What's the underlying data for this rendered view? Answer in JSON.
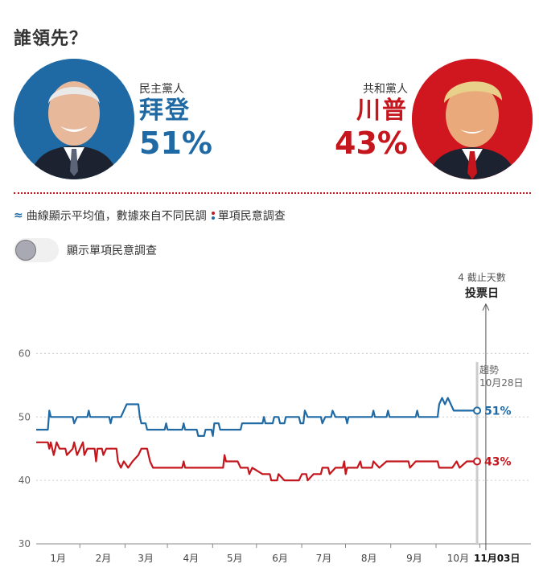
{
  "header": {
    "title": "誰領先？"
  },
  "candidates": {
    "dem": {
      "party": "民主黨人",
      "name": "拜登",
      "pct": "51%"
    },
    "rep": {
      "party": "共和黨人",
      "name": "川普",
      "pct": "43%"
    }
  },
  "legend": {
    "avg_text": "曲線顯示平均值，數據來自不同民調",
    "poll_text": "單項民意調查"
  },
  "toggle": {
    "label": "顯示單項民意調查"
  },
  "annotations": {
    "countdown": "4 截止天數",
    "election_day": "投票日",
    "trend_label": "趨勢",
    "trend_date": "10月28日",
    "election_date_label": "11月03日"
  },
  "colors": {
    "dem": "#1f6aa5",
    "rep": "#c4161c",
    "grid": "#cccccc"
  },
  "chart_data": {
    "type": "line",
    "title": "",
    "xlabel": "",
    "ylabel": "",
    "ylim": [
      30,
      65
    ],
    "y_ticks": [
      30,
      40,
      50,
      60
    ],
    "grid": true,
    "x_ticks": [
      {
        "label": "1月",
        "day": 15
      },
      {
        "label": "2月",
        "day": 46
      },
      {
        "label": "3月",
        "day": 75
      },
      {
        "label": "4月",
        "day": 106
      },
      {
        "label": "5月",
        "day": 136
      },
      {
        "label": "6月",
        "day": 167
      },
      {
        "label": "7月",
        "day": 197
      },
      {
        "label": "8月",
        "day": 228
      },
      {
        "label": "9月",
        "day": 259
      },
      {
        "label": "10月",
        "day": 289
      }
    ],
    "x_domain_days": [
      0,
      313
    ],
    "election_day": 308,
    "trend_day": 302,
    "series": [
      {
        "name": "拜登",
        "key": "dem",
        "points": [
          [
            0,
            48
          ],
          [
            8,
            48
          ],
          [
            9,
            51
          ],
          [
            10,
            50
          ],
          [
            25,
            50
          ],
          [
            26,
            49
          ],
          [
            28,
            50
          ],
          [
            35,
            50
          ],
          [
            36,
            51
          ],
          [
            37,
            50
          ],
          [
            50,
            50
          ],
          [
            51,
            49
          ],
          [
            52,
            50
          ],
          [
            58,
            50
          ],
          [
            60,
            51
          ],
          [
            62,
            52
          ],
          [
            70,
            52
          ],
          [
            71,
            50
          ],
          [
            72,
            49
          ],
          [
            75,
            49
          ],
          [
            76,
            48
          ],
          [
            88,
            48
          ],
          [
            89,
            49
          ],
          [
            90,
            48
          ],
          [
            100,
            48
          ],
          [
            101,
            49
          ],
          [
            102,
            48
          ],
          [
            110,
            48
          ],
          [
            111,
            47
          ],
          [
            115,
            47
          ],
          [
            116,
            48
          ],
          [
            120,
            48
          ],
          [
            121,
            47
          ],
          [
            122,
            49
          ],
          [
            125,
            49
          ],
          [
            126,
            48
          ],
          [
            140,
            48
          ],
          [
            141,
            49
          ],
          [
            155,
            49
          ],
          [
            156,
            50
          ],
          [
            157,
            49
          ],
          [
            162,
            49
          ],
          [
            163,
            50
          ],
          [
            166,
            50
          ],
          [
            167,
            49
          ],
          [
            170,
            49
          ],
          [
            171,
            50
          ],
          [
            180,
            50
          ],
          [
            181,
            49
          ],
          [
            183,
            49
          ],
          [
            184,
            51
          ],
          [
            186,
            50
          ],
          [
            195,
            50
          ],
          [
            196,
            49
          ],
          [
            198,
            50
          ],
          [
            202,
            50
          ],
          [
            203,
            51
          ],
          [
            205,
            50
          ],
          [
            212,
            50
          ],
          [
            213,
            49
          ],
          [
            214,
            50
          ],
          [
            230,
            50
          ],
          [
            231,
            51
          ],
          [
            232,
            50
          ],
          [
            240,
            50
          ],
          [
            241,
            51
          ],
          [
            242,
            50
          ],
          [
            260,
            50
          ],
          [
            261,
            51
          ],
          [
            262,
            50
          ],
          [
            275,
            50
          ],
          [
            276,
            52
          ],
          [
            278,
            53
          ],
          [
            280,
            52
          ],
          [
            282,
            53
          ],
          [
            284,
            52
          ],
          [
            286,
            51
          ],
          [
            290,
            51
          ],
          [
            295,
            51
          ],
          [
            302,
            51
          ]
        ]
      },
      {
        "name": "川普",
        "key": "rep",
        "points": [
          [
            0,
            46
          ],
          [
            8,
            46
          ],
          [
            9,
            45
          ],
          [
            10,
            46
          ],
          [
            12,
            44
          ],
          [
            14,
            46
          ],
          [
            16,
            45
          ],
          [
            20,
            45
          ],
          [
            21,
            44
          ],
          [
            25,
            45
          ],
          [
            26,
            46
          ],
          [
            28,
            44
          ],
          [
            30,
            45
          ],
          [
            32,
            46
          ],
          [
            33,
            44
          ],
          [
            35,
            45
          ],
          [
            40,
            45
          ],
          [
            41,
            43
          ],
          [
            42,
            45
          ],
          [
            45,
            45
          ],
          [
            46,
            44
          ],
          [
            48,
            45
          ],
          [
            55,
            45
          ],
          [
            56,
            43
          ],
          [
            58,
            42
          ],
          [
            60,
            43
          ],
          [
            63,
            42
          ],
          [
            66,
            43
          ],
          [
            70,
            44
          ],
          [
            72,
            45
          ],
          [
            76,
            45
          ],
          [
            78,
            43
          ],
          [
            80,
            42
          ],
          [
            100,
            42
          ],
          [
            101,
            43
          ],
          [
            102,
            42
          ],
          [
            128,
            42
          ],
          [
            129,
            44
          ],
          [
            130,
            43
          ],
          [
            138,
            43
          ],
          [
            140,
            42
          ],
          [
            145,
            42
          ],
          [
            146,
            41
          ],
          [
            148,
            42
          ],
          [
            155,
            41
          ],
          [
            160,
            41
          ],
          [
            161,
            40
          ],
          [
            165,
            40
          ],
          [
            166,
            41
          ],
          [
            170,
            40
          ],
          [
            180,
            40
          ],
          [
            182,
            41
          ],
          [
            185,
            41
          ],
          [
            186,
            40
          ],
          [
            190,
            41
          ],
          [
            195,
            41
          ],
          [
            196,
            42
          ],
          [
            200,
            42
          ],
          [
            201,
            41
          ],
          [
            205,
            42
          ],
          [
            210,
            42
          ],
          [
            211,
            43
          ],
          [
            212,
            41
          ],
          [
            213,
            42
          ],
          [
            220,
            42
          ],
          [
            222,
            43
          ],
          [
            223,
            42
          ],
          [
            230,
            42
          ],
          [
            231,
            43
          ],
          [
            235,
            42
          ],
          [
            240,
            43
          ],
          [
            255,
            43
          ],
          [
            256,
            42
          ],
          [
            260,
            43
          ],
          [
            275,
            43
          ],
          [
            276,
            42
          ],
          [
            285,
            42
          ],
          [
            288,
            43
          ],
          [
            290,
            42
          ],
          [
            295,
            43
          ],
          [
            298,
            43
          ],
          [
            302,
            43
          ]
        ]
      }
    ],
    "end_labels": {
      "dem": "51%",
      "rep": "43%"
    }
  }
}
